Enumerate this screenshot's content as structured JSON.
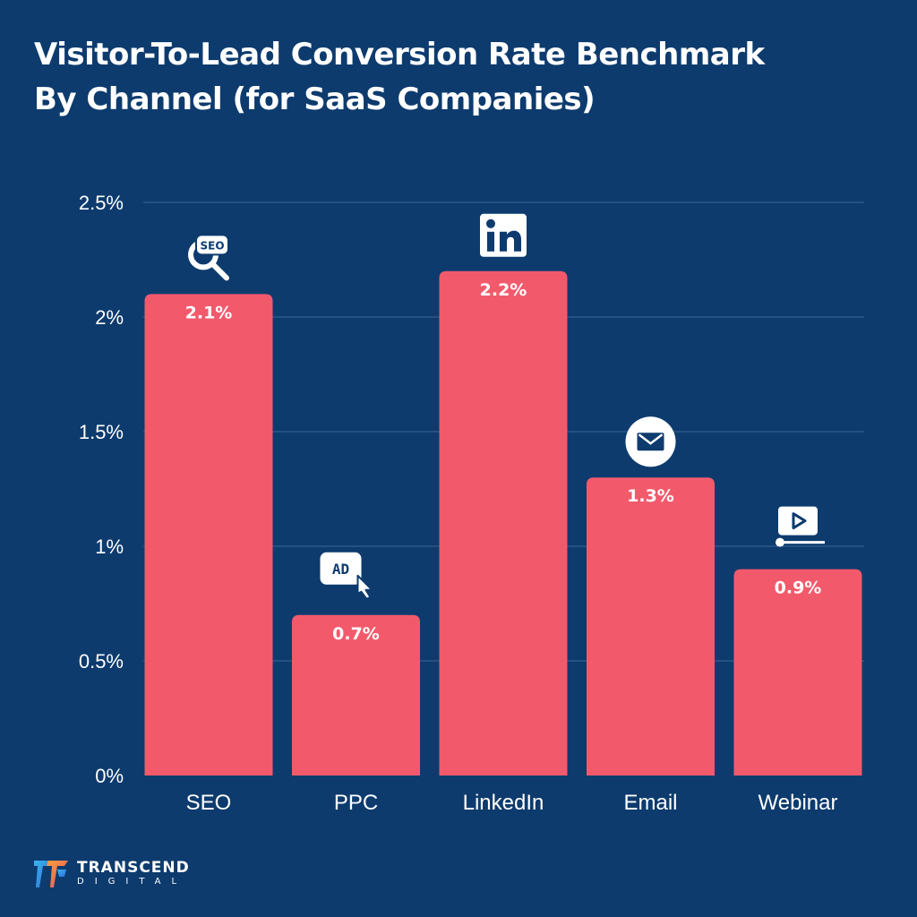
{
  "chart_data": {
    "type": "bar",
    "title_lines": [
      "Visitor-To-Lead Conversion Rate Benchmark",
      "By Channel (for SaaS Companies)"
    ],
    "categories": [
      "SEO",
      "PPC",
      "LinkedIn",
      "Email",
      "Webinar"
    ],
    "values": [
      2.1,
      0.7,
      2.2,
      1.3,
      0.9
    ],
    "value_labels": [
      "2.1%",
      "0.7%",
      "2.2%",
      "1.3%",
      "0.9%"
    ],
    "icons": [
      "seo-magnifier-icon",
      "ad-click-icon",
      "linkedin-icon",
      "email-icon",
      "video-play-icon"
    ],
    "yticks": [
      0,
      0.5,
      1,
      1.5,
      2,
      2.5
    ],
    "ytick_labels": [
      "0%",
      "0.5%",
      "1%",
      "1.5%",
      "2%",
      "2.5%"
    ],
    "ylim": [
      0,
      2.5
    ],
    "grid": true,
    "xlabel": "",
    "ylabel": "",
    "colors": {
      "background": "#0d3b6e",
      "bar": "#f25a6c",
      "text": "#ffffff",
      "grid": "#3f6592"
    }
  },
  "brand": {
    "name": "TRANSCEND",
    "tagline": "DIGITAL"
  },
  "icon_text": {
    "seo": "SEO",
    "ad": "AD"
  }
}
